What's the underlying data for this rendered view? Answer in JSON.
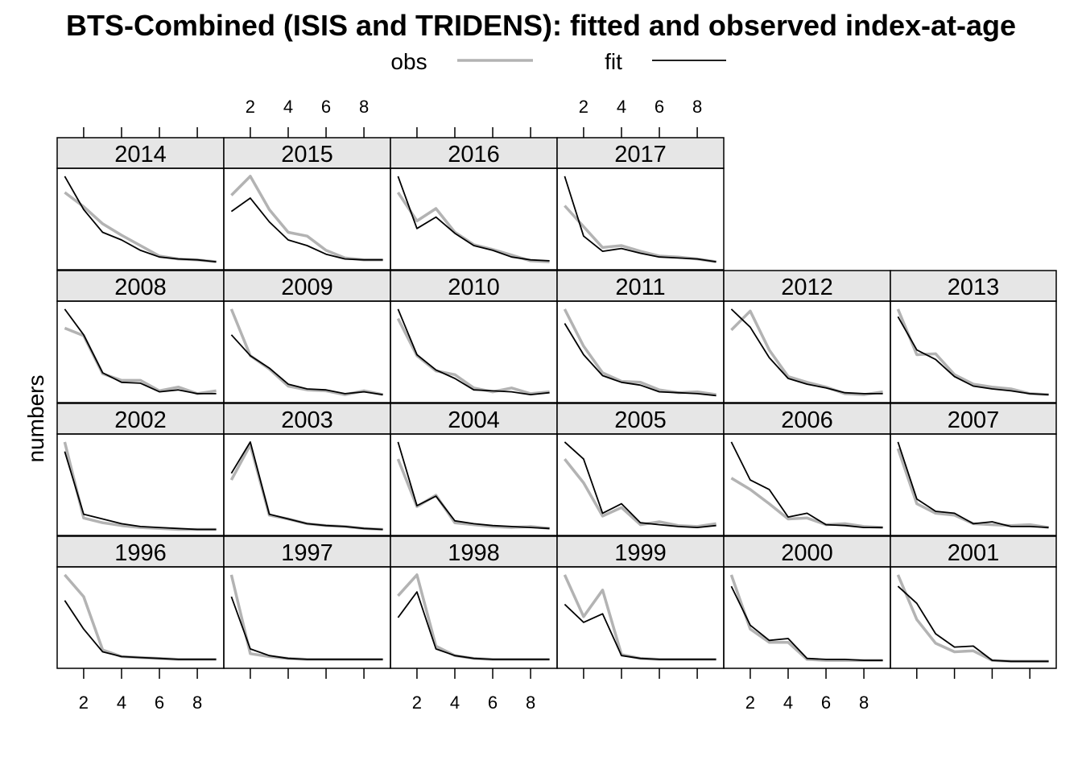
{
  "chart_data": {
    "type": "line",
    "title": "BTS-Combined (ISIS and TRIDENS): fitted and observed index-at-age",
    "ylabel": "numbers",
    "xlabel": "",
    "x": [
      1,
      2,
      3,
      4,
      5,
      6,
      7,
      8,
      9
    ],
    "xlim": [
      0.6,
      9.4
    ],
    "x_ticks": [
      2,
      4,
      6,
      8
    ],
    "ylim": [
      0,
      1
    ],
    "grid": false,
    "legend_position": "top-center",
    "series": [
      {
        "name": "obs",
        "color": "#b3b3b3"
      },
      {
        "name": "fit",
        "color": "#000000"
      }
    ],
    "panels": [
      {
        "year": "2014",
        "row": 0,
        "col": 0,
        "obs": [
          0.78,
          0.63,
          0.45,
          0.33,
          0.22,
          0.11,
          0.08,
          0.07,
          0.05
        ],
        "fit": [
          0.95,
          0.6,
          0.36,
          0.28,
          0.17,
          0.1,
          0.08,
          0.07,
          0.05
        ]
      },
      {
        "year": "2015",
        "row": 0,
        "col": 1,
        "obs": [
          0.75,
          0.95,
          0.6,
          0.36,
          0.32,
          0.17,
          0.09,
          0.07,
          0.07
        ],
        "fit": [
          0.58,
          0.72,
          0.47,
          0.28,
          0.22,
          0.13,
          0.08,
          0.07,
          0.07
        ]
      },
      {
        "year": "2016",
        "row": 0,
        "col": 2,
        "obs": [
          0.78,
          0.48,
          0.61,
          0.36,
          0.23,
          0.18,
          0.12,
          0.06,
          0.05
        ],
        "fit": [
          0.95,
          0.4,
          0.52,
          0.35,
          0.22,
          0.17,
          0.1,
          0.07,
          0.06
        ]
      },
      {
        "year": "2017",
        "row": 0,
        "col": 3,
        "obs": [
          0.64,
          0.42,
          0.2,
          0.22,
          0.16,
          0.11,
          0.1,
          0.08,
          0.05
        ],
        "fit": [
          0.95,
          0.32,
          0.16,
          0.19,
          0.14,
          0.1,
          0.09,
          0.08,
          0.05
        ]
      },
      {
        "year": "2008",
        "row": 1,
        "col": 0,
        "obs": [
          0.75,
          0.67,
          0.27,
          0.2,
          0.2,
          0.09,
          0.13,
          0.06,
          0.09
        ],
        "fit": [
          0.95,
          0.68,
          0.28,
          0.18,
          0.17,
          0.08,
          0.1,
          0.06,
          0.06
        ]
      },
      {
        "year": "2009",
        "row": 1,
        "col": 1,
        "obs": [
          0.95,
          0.46,
          0.32,
          0.14,
          0.1,
          0.09,
          0.05,
          0.09,
          0.05
        ],
        "fit": [
          0.68,
          0.46,
          0.33,
          0.16,
          0.11,
          0.1,
          0.06,
          0.08,
          0.05
        ]
      },
      {
        "year": "2010",
        "row": 1,
        "col": 2,
        "obs": [
          0.85,
          0.46,
          0.3,
          0.26,
          0.12,
          0.08,
          0.12,
          0.06,
          0.08
        ],
        "fit": [
          0.95,
          0.47,
          0.31,
          0.22,
          0.1,
          0.09,
          0.08,
          0.05,
          0.07
        ]
      },
      {
        "year": "2011",
        "row": 1,
        "col": 3,
        "obs": [
          0.95,
          0.56,
          0.28,
          0.19,
          0.18,
          0.1,
          0.07,
          0.08,
          0.05
        ],
        "fit": [
          0.8,
          0.47,
          0.25,
          0.18,
          0.15,
          0.08,
          0.07,
          0.06,
          0.04
        ]
      },
      {
        "year": "2012",
        "row": 1,
        "col": 4,
        "obs": [
          0.73,
          0.93,
          0.52,
          0.24,
          0.18,
          0.13,
          0.06,
          0.05,
          0.08
        ],
        "fit": [
          0.95,
          0.76,
          0.44,
          0.22,
          0.16,
          0.12,
          0.07,
          0.06,
          0.06
        ]
      },
      {
        "year": "2013",
        "row": 1,
        "col": 5,
        "obs": [
          0.95,
          0.47,
          0.48,
          0.26,
          0.16,
          0.13,
          0.11,
          0.06,
          0.05
        ],
        "fit": [
          0.87,
          0.52,
          0.42,
          0.24,
          0.14,
          0.11,
          0.09,
          0.06,
          0.05
        ]
      },
      {
        "year": "2002",
        "row": 2,
        "col": 0,
        "obs": [
          0.95,
          0.15,
          0.1,
          0.07,
          0.05,
          0.04,
          0.03,
          0.03,
          0.03
        ],
        "fit": [
          0.85,
          0.19,
          0.14,
          0.09,
          0.06,
          0.05,
          0.04,
          0.03,
          0.03
        ]
      },
      {
        "year": "2003",
        "row": 2,
        "col": 1,
        "obs": [
          0.55,
          0.92,
          0.18,
          0.14,
          0.09,
          0.07,
          0.06,
          0.04,
          0.03
        ],
        "fit": [
          0.62,
          0.95,
          0.19,
          0.14,
          0.09,
          0.07,
          0.06,
          0.04,
          0.03
        ]
      },
      {
        "year": "2004",
        "row": 2,
        "col": 2,
        "obs": [
          0.77,
          0.27,
          0.39,
          0.1,
          0.08,
          0.06,
          0.05,
          0.06,
          0.04
        ],
        "fit": [
          0.95,
          0.28,
          0.38,
          0.12,
          0.09,
          0.07,
          0.06,
          0.05,
          0.04
        ]
      },
      {
        "year": "2005",
        "row": 2,
        "col": 3,
        "obs": [
          0.77,
          0.52,
          0.17,
          0.26,
          0.08,
          0.11,
          0.07,
          0.06,
          0.09
        ],
        "fit": [
          0.95,
          0.77,
          0.2,
          0.3,
          0.1,
          0.08,
          0.06,
          0.05,
          0.07
        ]
      },
      {
        "year": "2006",
        "row": 2,
        "col": 4,
        "obs": [
          0.57,
          0.45,
          0.3,
          0.14,
          0.15,
          0.08,
          0.09,
          0.06,
          0.05
        ],
        "fit": [
          0.95,
          0.55,
          0.45,
          0.16,
          0.2,
          0.08,
          0.07,
          0.05,
          0.05
        ]
      },
      {
        "year": "2007",
        "row": 2,
        "col": 5,
        "obs": [
          0.88,
          0.3,
          0.2,
          0.18,
          0.09,
          0.08,
          0.07,
          0.08,
          0.05
        ],
        "fit": [
          0.95,
          0.35,
          0.22,
          0.2,
          0.09,
          0.11,
          0.06,
          0.06,
          0.05
        ]
      },
      {
        "year": "1996",
        "row": 3,
        "col": 0,
        "obs": [
          0.95,
          0.72,
          0.16,
          0.09,
          0.08,
          0.07,
          0.06,
          0.06,
          0.06
        ],
        "fit": [
          0.68,
          0.38,
          0.14,
          0.09,
          0.08,
          0.07,
          0.06,
          0.06,
          0.06
        ]
      },
      {
        "year": "1997",
        "row": 3,
        "col": 1,
        "obs": [
          0.95,
          0.12,
          0.09,
          0.07,
          0.06,
          0.06,
          0.06,
          0.06,
          0.06
        ],
        "fit": [
          0.72,
          0.17,
          0.1,
          0.07,
          0.06,
          0.06,
          0.06,
          0.06,
          0.06
        ]
      },
      {
        "year": "1998",
        "row": 3,
        "col": 2,
        "obs": [
          0.73,
          0.95,
          0.2,
          0.1,
          0.07,
          0.06,
          0.06,
          0.06,
          0.06
        ],
        "fit": [
          0.5,
          0.77,
          0.17,
          0.1,
          0.07,
          0.06,
          0.06,
          0.06,
          0.06
        ]
      },
      {
        "year": "1999",
        "row": 3,
        "col": 3,
        "obs": [
          0.95,
          0.51,
          0.79,
          0.11,
          0.07,
          0.06,
          0.06,
          0.06,
          0.06
        ],
        "fit": [
          0.64,
          0.45,
          0.54,
          0.1,
          0.07,
          0.06,
          0.06,
          0.06,
          0.06
        ]
      },
      {
        "year": "2000",
        "row": 3,
        "col": 4,
        "obs": [
          0.95,
          0.38,
          0.24,
          0.24,
          0.06,
          0.05,
          0.05,
          0.05,
          0.05
        ],
        "fit": [
          0.83,
          0.42,
          0.26,
          0.28,
          0.07,
          0.06,
          0.06,
          0.05,
          0.05
        ]
      },
      {
        "year": "2001",
        "row": 3,
        "col": 5,
        "obs": [
          0.95,
          0.48,
          0.23,
          0.14,
          0.15,
          0.05,
          0.04,
          0.04,
          0.04
        ],
        "fit": [
          0.83,
          0.65,
          0.33,
          0.19,
          0.2,
          0.05,
          0.04,
          0.04,
          0.04
        ]
      }
    ]
  }
}
